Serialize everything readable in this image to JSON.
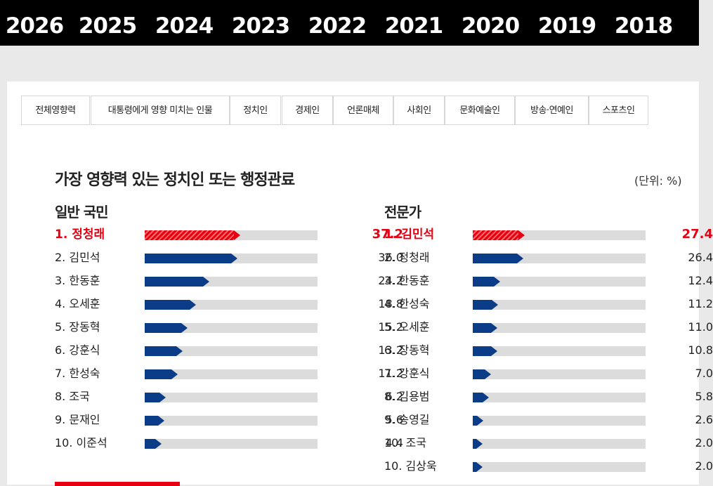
{
  "years": [
    {
      "label": "2026",
      "active": true
    },
    {
      "label": "2025",
      "active": false
    },
    {
      "label": "2024",
      "active": false
    },
    {
      "label": "2023",
      "active": false
    },
    {
      "label": "2022",
      "active": false
    },
    {
      "label": "2021",
      "active": false
    },
    {
      "label": "2020",
      "active": false
    },
    {
      "label": "2019",
      "active": false
    },
    {
      "label": "2018",
      "active": false
    }
  ],
  "tabs": [
    {
      "label": "전체영향력",
      "active": false
    },
    {
      "label": "대통령에게 영향 미치는 인물",
      "active": false
    },
    {
      "label": "정치인",
      "active": true
    },
    {
      "label": "경제인",
      "active": false
    },
    {
      "label": "언론매체",
      "active": false
    },
    {
      "label": "사회인",
      "active": false
    },
    {
      "label": "문화예술인",
      "active": false
    },
    {
      "label": "방송·연예인",
      "active": false
    },
    {
      "label": "스포츠인",
      "active": false
    }
  ],
  "title": "가장 영향력 있는 정치인 또는 행정관료",
  "unit": "(단위: %)",
  "colors": {
    "accent": "#e60012",
    "bar": "#0a3c87",
    "track": "#dcdcdc"
  },
  "columns": [
    {
      "title": "일반 국민",
      "rows": [
        {
          "rank": "1. 정청래",
          "value": 37.2,
          "value_label": "37.2"
        },
        {
          "rank": "2. 김민석",
          "value": 36.0,
          "value_label": "36.0"
        },
        {
          "rank": "3. 한동훈",
          "value": 24.2,
          "value_label": "24.2"
        },
        {
          "rank": "4. 오세훈",
          "value": 18.8,
          "value_label": "18.8"
        },
        {
          "rank": "5. 장동혁",
          "value": 15.2,
          "value_label": "15.2"
        },
        {
          "rank": "6. 강훈식",
          "value": 13.2,
          "value_label": "13.2"
        },
        {
          "rank": "7. 한성숙",
          "value": 11.2,
          "value_label": "11.2"
        },
        {
          "rank": "8. 조국",
          "value": 6.2,
          "value_label": "6.2"
        },
        {
          "rank": "9. 문재인",
          "value": 5.6,
          "value_label": "5.6"
        },
        {
          "rank": "10. 이준석",
          "value": 4.4,
          "value_label": "4.4"
        }
      ]
    },
    {
      "title": "전문가",
      "rows": [
        {
          "rank": "1. 김민석",
          "value": 27.4,
          "value_label": "27.4"
        },
        {
          "rank": "2. 정청래",
          "value": 26.4,
          "value_label": "26.4"
        },
        {
          "rank": "3. 한동훈",
          "value": 12.4,
          "value_label": "12.4"
        },
        {
          "rank": "4. 한성숙",
          "value": 11.2,
          "value_label": "11.2"
        },
        {
          "rank": "5. 오세훈",
          "value": 11.0,
          "value_label": "11.0"
        },
        {
          "rank": "6. 장동혁",
          "value": 10.8,
          "value_label": "10.8"
        },
        {
          "rank": "7. 강훈식",
          "value": 7.0,
          "value_label": "7.0"
        },
        {
          "rank": "8. 김용범",
          "value": 5.8,
          "value_label": "5.8"
        },
        {
          "rank": "9. 송영길",
          "value": 2.6,
          "value_label": "2.6"
        },
        {
          "rank": "10. 조국",
          "value": 2.0,
          "value_label": "2.0"
        },
        {
          "rank": "10. 김상욱",
          "value": 2.0,
          "value_label": "2.0"
        }
      ]
    }
  ]
}
